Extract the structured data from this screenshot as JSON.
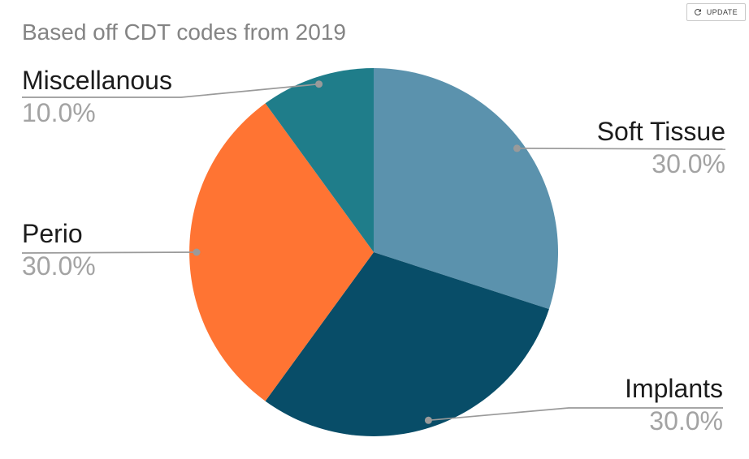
{
  "update_button": {
    "label": "UPDATE",
    "icon": "refresh-icon"
  },
  "chart_data": {
    "type": "pie",
    "title": "Based off CDT codes from 2019",
    "start_angle_deg": 0,
    "direction": "clockwise",
    "legend": "none",
    "labels": "outside-with-leader-lines",
    "slices": [
      {
        "label": "Soft Tissue",
        "value": 30.0,
        "pct_label": "30.0%",
        "color": "#5b92ad"
      },
      {
        "label": "Implants",
        "value": 30.0,
        "pct_label": "30.0%",
        "color": "#084d68"
      },
      {
        "label": "Perio",
        "value": 30.0,
        "pct_label": "30.0%",
        "color": "#ff7433"
      },
      {
        "label": "Miscellanous",
        "value": 10.0,
        "pct_label": "10.0%",
        "color": "#1f7d8a"
      }
    ],
    "style": {
      "title_color": "#848484",
      "label_name_color": "#1c1c1c",
      "label_pct_color": "#a3a3a3",
      "leader_line_color": "#9a9a9a"
    }
  }
}
